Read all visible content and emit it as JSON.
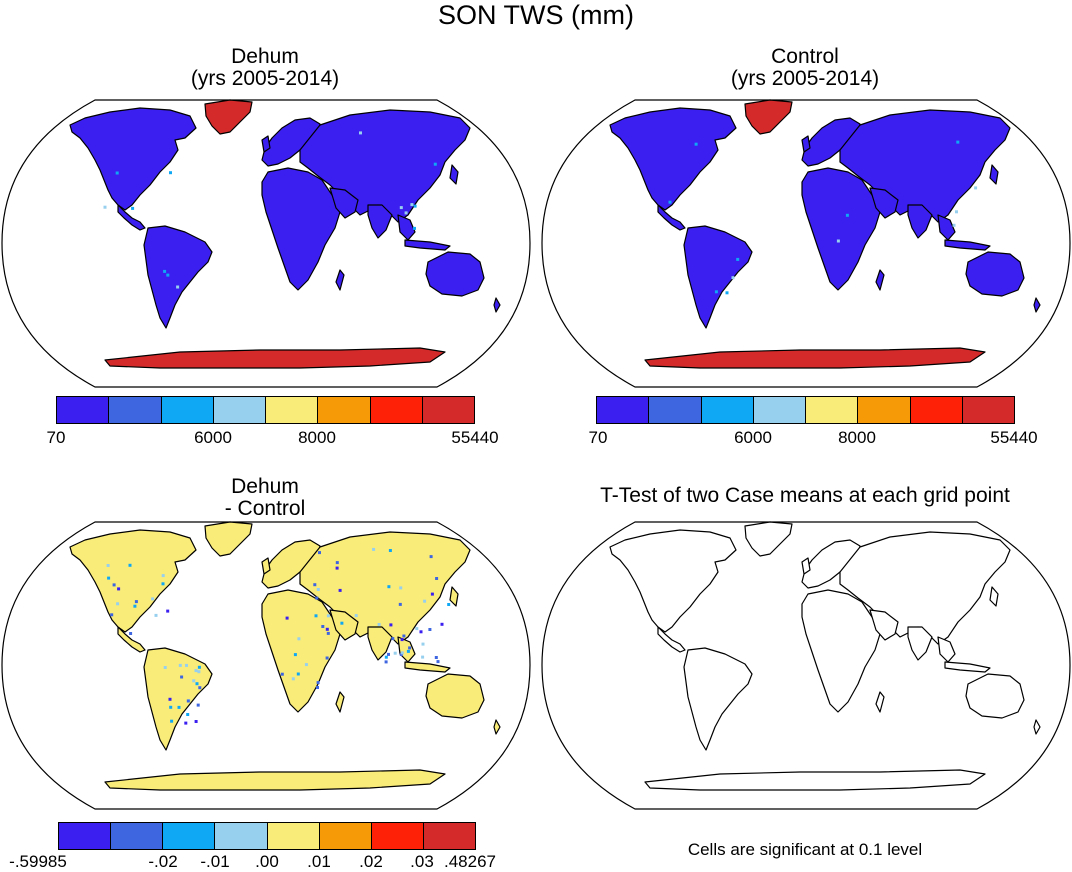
{
  "title": "SON TWS (mm)",
  "panels": {
    "top_left": {
      "title_line1": "Dehum",
      "title_line2": "(yrs 2005-2014)",
      "land_color": "#3b1ff0",
      "greenland_color": "#d42a2a",
      "antarctica_color": "#d42a2a"
    },
    "top_right": {
      "title_line1": "Control",
      "title_line2": "(yrs 2005-2014)",
      "land_color": "#3b1ff0",
      "greenland_color": "#d42a2a",
      "antarctica_color": "#d42a2a"
    },
    "bottom_left": {
      "title_line1": "Dehum",
      "title_line2": "- Control",
      "land_color": "#faec78",
      "greenland_color": "#faec78",
      "antarctica_color": "#faec78"
    },
    "bottom_right": {
      "title_line1": "T-Test of two Case means at each grid point",
      "note": "Cells are significant at 0.1 level"
    }
  },
  "colorbar_colors": [
    "#3b1ff0",
    "#3d66e0",
    "#0fa8f5",
    "#96d0ee",
    "#faec78",
    "#f79a08",
    "#ff2008",
    "#d42a2a"
  ],
  "colorbar_top": {
    "labels": [
      "70",
      "6000",
      "8000",
      "55440"
    ]
  },
  "colorbar_bottom": {
    "labels": [
      "-.59985",
      "-.02",
      "-.01",
      ".00",
      ".01",
      ".02",
      ".03",
      ".48267"
    ]
  }
}
